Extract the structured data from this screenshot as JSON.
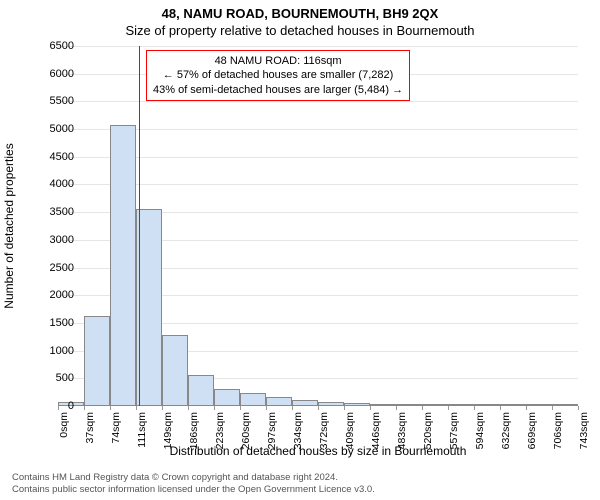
{
  "title_line1": "48, NAMU ROAD, BOURNEMOUTH, BH9 2QX",
  "title_line2": "Size of property relative to detached houses in Bournemouth",
  "y_axis_label": "Number of detached properties",
  "x_axis_label": "Distribution of detached houses by size in Bournemouth",
  "footer_line1": "Contains HM Land Registry data © Crown copyright and database right 2024.",
  "footer_line2": "Contains public sector information licensed under the Open Government Licence v3.0.",
  "chart": {
    "type": "histogram",
    "ylim": [
      0,
      6500
    ],
    "yticks": [
      0,
      500,
      1000,
      1500,
      2000,
      2500,
      3000,
      3500,
      4000,
      4500,
      5000,
      5500,
      6000,
      6500
    ],
    "x_tick_labels": [
      "0sqm",
      "37sqm",
      "74sqm",
      "111sqm",
      "149sqm",
      "186sqm",
      "223sqm",
      "260sqm",
      "297sqm",
      "334sqm",
      "372sqm",
      "409sqm",
      "446sqm",
      "483sqm",
      "520sqm",
      "557sqm",
      "594sqm",
      "632sqm",
      "669sqm",
      "706sqm",
      "743sqm"
    ],
    "bar_values": [
      75,
      1620,
      5080,
      3550,
      1290,
      560,
      310,
      240,
      160,
      110,
      80,
      60,
      45,
      25,
      15,
      12,
      10,
      8,
      6,
      5
    ],
    "bar_fill_color": "#cfe0f4",
    "bar_border_color": "#888888",
    "grid_color": "#e6e6e6",
    "background_color": "#ffffff",
    "marker_value_sqm": 116,
    "marker_color": "#ff0000",
    "annotation": {
      "line1": "48 NAMU ROAD: 116sqm",
      "line2": "← 57% of detached houses are smaller (7,282)",
      "line3": "43% of semi-detached houses are larger (5,484) →",
      "border_color": "#ff0000"
    },
    "title_fontsize": 13,
    "label_fontsize": 12,
    "tick_fontsize": 11
  }
}
